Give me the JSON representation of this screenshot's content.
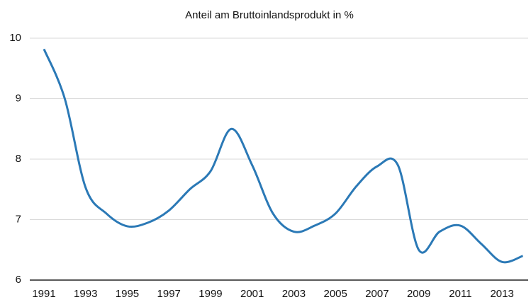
{
  "chart_data": {
    "type": "line",
    "title": "Anteil am Bruttoinlandsprodukt in %",
    "categories": [
      "1991",
      null,
      "1993",
      null,
      "1995",
      null,
      "1997",
      null,
      "1999",
      null,
      "2001",
      null,
      "2003",
      null,
      "2005",
      null,
      "2007",
      null,
      "2009",
      null,
      "2011",
      null,
      "2013",
      null
    ],
    "values": [
      9.82,
      9.0,
      7.53,
      7.1,
      6.89,
      6.95,
      7.15,
      7.5,
      7.8,
      8.5,
      7.9,
      7.1,
      6.8,
      6.9,
      7.1,
      7.55,
      7.88,
      7.9,
      6.5,
      6.8,
      6.9,
      6.6,
      6.3,
      6.4
    ],
    "color": "#2b79b6",
    "ylim": [
      6,
      10
    ],
    "yticks": [
      6,
      7,
      8,
      9,
      10
    ],
    "grid": true
  }
}
